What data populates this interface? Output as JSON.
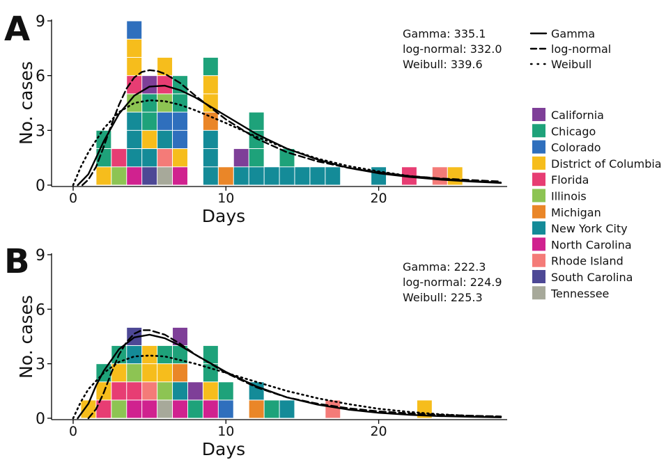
{
  "colors": {
    "California": "#7e3f98",
    "Chicago": "#1ea27a",
    "Colorado": "#2f6fbd",
    "District of Columbia": "#f6bd1c",
    "Florida": "#e73d73",
    "Illinois": "#8dc453",
    "Michigan": "#ea8628",
    "New York City": "#148b98",
    "North Carolina": "#d0228f",
    "Rhode Island": "#f47b78",
    "South Carolina": "#4d4895",
    "Tennessee": "#a7a99a"
  },
  "legend": {
    "lines": [
      {
        "label": "Gamma",
        "style": "solid"
      },
      {
        "label": "log-normal",
        "style": "dashed"
      },
      {
        "label": "Weibull",
        "style": "dotted"
      }
    ],
    "states": [
      "California",
      "Chicago",
      "Colorado",
      "District of Columbia",
      "Florida",
      "Illinois",
      "Michigan",
      "New York City",
      "North Carolina",
      "Rhode Island",
      "South Carolina",
      "Tennessee"
    ]
  },
  "chart_data": [
    {
      "panel": "A",
      "type": "bar",
      "stacked": true,
      "xlabel": "Days",
      "ylabel": "No. cases",
      "xlim": [
        -1.3,
        29
      ],
      "ylim": [
        0,
        9
      ],
      "xticks": [
        0,
        10,
        20
      ],
      "yticks": [
        0,
        3,
        6,
        9
      ],
      "fit_stats": [
        "Gamma: 335.1",
        "log-normal: 332.0",
        "Weibull: 339.6"
      ],
      "stacks": [
        {
          "day": 2,
          "segments": [
            "District of Columbia",
            "Chicago",
            "Chicago"
          ]
        },
        {
          "day": 3,
          "segments": [
            "Illinois",
            "Florida"
          ]
        },
        {
          "day": 4,
          "segments": [
            "North Carolina",
            "New York City",
            "New York City",
            "New York City",
            "Illinois",
            "Florida",
            "District of Columbia",
            "District of Columbia",
            "Colorado"
          ]
        },
        {
          "day": 5,
          "segments": [
            "South Carolina",
            "New York City",
            "District of Columbia",
            "Chicago",
            "Chicago",
            "California"
          ]
        },
        {
          "day": 6,
          "segments": [
            "Tennessee",
            "Rhode Island",
            "New York City",
            "Colorado",
            "Illinois",
            "Florida",
            "District of Columbia"
          ]
        },
        {
          "day": 7,
          "segments": [
            "North Carolina",
            "District of Columbia",
            "Colorado",
            "Colorado",
            "Chicago",
            "Chicago"
          ]
        },
        {
          "day": 9,
          "segments": [
            "New York City",
            "New York City",
            "New York City",
            "Michigan",
            "District of Columbia",
            "District of Columbia",
            "Chicago"
          ]
        },
        {
          "day": 10,
          "segments": [
            "Michigan"
          ]
        },
        {
          "day": 11,
          "segments": [
            "New York City",
            "California"
          ]
        },
        {
          "day": 12,
          "segments": [
            "New York City",
            "Chicago",
            "Chicago",
            "Chicago"
          ]
        },
        {
          "day": 13,
          "segments": [
            "New York City"
          ]
        },
        {
          "day": 14,
          "segments": [
            "New York City",
            "Chicago"
          ]
        },
        {
          "day": 15,
          "segments": [
            "New York City"
          ]
        },
        {
          "day": 16,
          "segments": [
            "New York City"
          ]
        },
        {
          "day": 17,
          "segments": [
            "New York City"
          ]
        },
        {
          "day": 20,
          "segments": [
            "New York City"
          ]
        },
        {
          "day": 22,
          "segments": [
            "Florida"
          ]
        },
        {
          "day": 24,
          "segments": [
            "Rhode Island"
          ]
        },
        {
          "day": 25,
          "segments": [
            "District of Columbia"
          ]
        }
      ],
      "curves": [
        {
          "name": "Gamma",
          "style": "solid",
          "x": [
            0.3,
            1,
            1.5,
            2,
            3,
            4,
            5,
            6,
            7,
            8,
            10,
            12,
            14,
            16,
            18,
            20,
            22,
            24,
            26,
            28
          ],
          "y": [
            0,
            0.6,
            1.5,
            2.4,
            3.9,
            4.9,
            5.4,
            5.45,
            5.2,
            4.8,
            3.8,
            2.8,
            2.0,
            1.4,
            0.95,
            0.65,
            0.45,
            0.3,
            0.2,
            0.12
          ]
        },
        {
          "name": "log-normal",
          "style": "dashed",
          "x": [
            0.6,
            1,
            1.5,
            2,
            2.5,
            3,
            3.5,
            4,
            4.5,
            5,
            5.5,
            6,
            7,
            8,
            9,
            10,
            12,
            14,
            16,
            18,
            20,
            22,
            24,
            26,
            28
          ],
          "y": [
            0,
            0.3,
            1.0,
            2.1,
            3.3,
            4.4,
            5.3,
            5.9,
            6.2,
            6.3,
            6.25,
            6.1,
            5.6,
            4.9,
            4.25,
            3.6,
            2.55,
            1.8,
            1.3,
            0.95,
            0.7,
            0.5,
            0.37,
            0.28,
            0.2
          ]
        },
        {
          "name": "Weibull",
          "style": "dotted",
          "x": [
            0,
            0.5,
            1,
            2,
            3,
            4,
            5,
            6,
            7,
            8,
            10,
            12,
            14,
            16,
            18,
            20,
            22,
            24,
            26,
            28
          ],
          "y": [
            0,
            1.0,
            1.8,
            3.1,
            4.0,
            4.5,
            4.65,
            4.6,
            4.4,
            4.1,
            3.4,
            2.65,
            2.0,
            1.45,
            1.05,
            0.75,
            0.5,
            0.35,
            0.22,
            0.14
          ]
        }
      ]
    },
    {
      "panel": "B",
      "type": "bar",
      "stacked": true,
      "xlabel": "Days",
      "ylabel": "No. cases",
      "xlim": [
        -1.3,
        29
      ],
      "ylim": [
        0,
        9
      ],
      "xticks": [
        0,
        10,
        20
      ],
      "yticks": [
        0,
        3,
        6,
        9
      ],
      "fit_stats": [
        "Gamma: 222.3",
        "log-normal: 224.9",
        "Weibull: 225.3"
      ],
      "stacks": [
        {
          "day": 1,
          "segments": [
            "District of Columbia"
          ]
        },
        {
          "day": 2,
          "segments": [
            "Florida",
            "District of Columbia",
            "Chicago"
          ]
        },
        {
          "day": 3,
          "segments": [
            "Illinois",
            "Florida",
            "District of Columbia",
            "Chicago"
          ]
        },
        {
          "day": 4,
          "segments": [
            "North Carolina",
            "Florida",
            "Illinois",
            "New York City",
            "South Carolina"
          ]
        },
        {
          "day": 5,
          "segments": [
            "North Carolina",
            "Rhode Island",
            "District of Columbia",
            "District of Columbia"
          ]
        },
        {
          "day": 6,
          "segments": [
            "Tennessee",
            "Illinois",
            "District of Columbia",
            "Chicago"
          ]
        },
        {
          "day": 7,
          "segments": [
            "North Carolina",
            "New York City",
            "Michigan",
            "Chicago",
            "California"
          ]
        },
        {
          "day": 8,
          "segments": [
            "Chicago",
            "California"
          ]
        },
        {
          "day": 9,
          "segments": [
            "North Carolina",
            "District of Columbia",
            "Chicago",
            "Chicago"
          ]
        },
        {
          "day": 10,
          "segments": [
            "Colorado",
            "Chicago"
          ]
        },
        {
          "day": 12,
          "segments": [
            "Michigan",
            "New York City"
          ]
        },
        {
          "day": 13,
          "segments": [
            "Chicago"
          ]
        },
        {
          "day": 14,
          "segments": [
            "New York City"
          ]
        },
        {
          "day": 17,
          "segments": [
            "Rhode Island"
          ]
        },
        {
          "day": 23,
          "segments": [
            "District of Columbia"
          ]
        }
      ],
      "curves": [
        {
          "name": "Gamma",
          "style": "solid",
          "x": [
            0.3,
            1,
            1.5,
            2,
            3,
            4,
            5,
            6,
            7,
            8,
            10,
            12,
            14,
            16,
            18,
            20,
            22,
            24,
            26,
            28
          ],
          "y": [
            0,
            0.8,
            1.8,
            2.6,
            3.8,
            4.45,
            4.6,
            4.4,
            4.0,
            3.5,
            2.55,
            1.75,
            1.15,
            0.75,
            0.48,
            0.3,
            0.19,
            0.12,
            0.08,
            0.05
          ]
        },
        {
          "name": "log-normal",
          "style": "dashed",
          "x": [
            1.0,
            1.5,
            2,
            2.5,
            3,
            3.5,
            4,
            4.5,
            5,
            6,
            7,
            8,
            10,
            12,
            14,
            16,
            18,
            20,
            22,
            24,
            26,
            28
          ],
          "y": [
            0,
            0.5,
            1.4,
            2.5,
            3.5,
            4.2,
            4.65,
            4.85,
            4.85,
            4.6,
            4.1,
            3.5,
            2.5,
            1.7,
            1.15,
            0.8,
            0.55,
            0.38,
            0.27,
            0.19,
            0.14,
            0.1
          ]
        },
        {
          "name": "Weibull",
          "style": "dotted",
          "x": [
            0,
            0.5,
            1,
            2,
            3,
            4,
            5,
            6,
            7,
            8,
            10,
            12,
            14,
            16,
            18,
            20,
            22,
            24,
            26,
            28
          ],
          "y": [
            0,
            0.9,
            1.6,
            2.5,
            3.1,
            3.4,
            3.45,
            3.4,
            3.2,
            3.0,
            2.5,
            2.0,
            1.5,
            1.1,
            0.78,
            0.52,
            0.35,
            0.22,
            0.13,
            0.08
          ]
        }
      ]
    }
  ]
}
